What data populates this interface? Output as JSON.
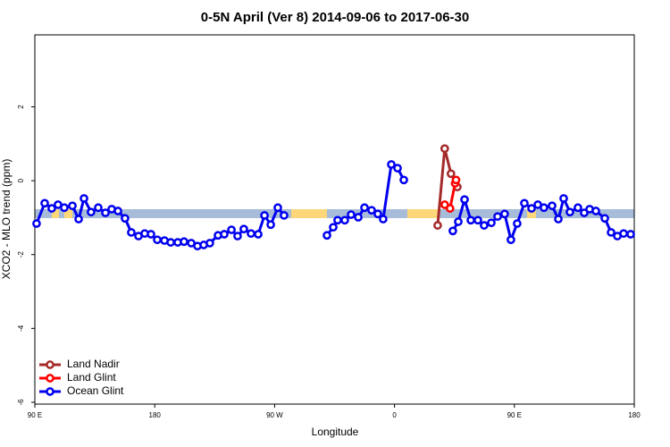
{
  "chart_data": {
    "type": "line",
    "title": "0-5N April (Ver 8)   2014-09-06 to 2017-06-30",
    "x_label": "Longitude",
    "y_label": "XCO2 - MLO trend (ppm)",
    "xlim": [
      90,
      540
    ],
    "ylim": [
      -6.05,
      3.95
    ],
    "xticks": [
      {
        "value": 90,
        "label": "90 E"
      },
      180,
      {
        "value": 270,
        "label": "90 W"
      },
      {
        "value": 360,
        "label": "0"
      },
      {
        "value": 450,
        "label": "90 E"
      },
      {
        "value": 540,
        "label": "180"
      }
    ],
    "yticks": [
      -6,
      -4,
      -2,
      0,
      2
    ],
    "legend": "bottom-left",
    "series": [
      {
        "name": "Land Nadir",
        "color": "#a52a2a",
        "x": [
          392.4,
          397.7,
          402.4,
          407.2
        ],
        "values": [
          -1.21,
          0.87,
          0.19,
          -0.17
        ]
      },
      {
        "name": "Land Glint",
        "color": "#ff0000",
        "x": [
          397.7,
          401.7,
          405.5,
          406.2
        ],
        "values": [
          -0.65,
          -0.75,
          -0.07,
          0.02
        ]
      },
      {
        "name": "Ocean Glint",
        "color": "#0000ee",
        "x": [
          91.3,
          97.4,
          102.7,
          107.4,
          112.1,
          118.2,
          122.9,
          126.9,
          132.2,
          137.6,
          143,
          147.7,
          152.4,
          157.7,
          162.4,
          167.8,
          172.5,
          177.2,
          181.9,
          187.3,
          192,
          197.3,
          202,
          207.4,
          212.1,
          216.8,
          221.4,
          227.5,
          232.2,
          237.6,
          242.2,
          246.9,
          252.3,
          257.7,
          262.4,
          267.1,
          272.4,
          277.1,
          293,
          309.3,
          314,
          317.3,
          322.7,
          327.4,
          332.8,
          337.5,
          342.8,
          347.5,
          351.5,
          357.6,
          362.3,
          367,
          385,
          403.8,
          407.9,
          412.6,
          417.3,
          422.6,
          427.3,
          432.7,
          437.4,
          442.7,
          447.4,
          452.1,
          457.5,
          462.9,
          467.6,
          472.2,
          478.3,
          483,
          487,
          491.7,
          497.7,
          502.4,
          506.5,
          511.2,
          517.9,
          522.6,
          527.3,
          532,
          537.3
        ],
        "values": [
          -1.16,
          -0.61,
          -0.75,
          -0.65,
          -0.73,
          -0.68,
          -1.04,
          -0.48,
          -0.85,
          -0.73,
          -0.87,
          -0.77,
          -0.82,
          -1.02,
          -1.4,
          -1.5,
          -1.43,
          -1.45,
          -1.6,
          -1.62,
          -1.67,
          -1.67,
          -1.65,
          -1.69,
          -1.77,
          -1.74,
          -1.69,
          -1.48,
          -1.45,
          -1.33,
          -1.5,
          -1.31,
          -1.43,
          -1.45,
          -0.94,
          -1.19,
          -0.73,
          -0.94,
          null,
          -1.48,
          -1.26,
          -1.07,
          -1.07,
          -0.92,
          -0.99,
          -0.73,
          -0.8,
          -0.9,
          -1.04,
          0.44,
          0.34,
          0.02,
          null,
          -1.36,
          -1.11,
          -0.51,
          -1.07,
          -1.07,
          -1.21,
          -1.14,
          -0.97,
          -0.9,
          -1.6,
          -1.16,
          -0.61,
          -0.75,
          -0.65,
          -0.73,
          -0.68,
          -1.04,
          -0.48,
          -0.85,
          -0.73,
          -0.87,
          -0.77,
          -0.82,
          -1.02,
          -1.4,
          -1.5,
          -1.43,
          -1.45
        ]
      }
    ]
  }
}
